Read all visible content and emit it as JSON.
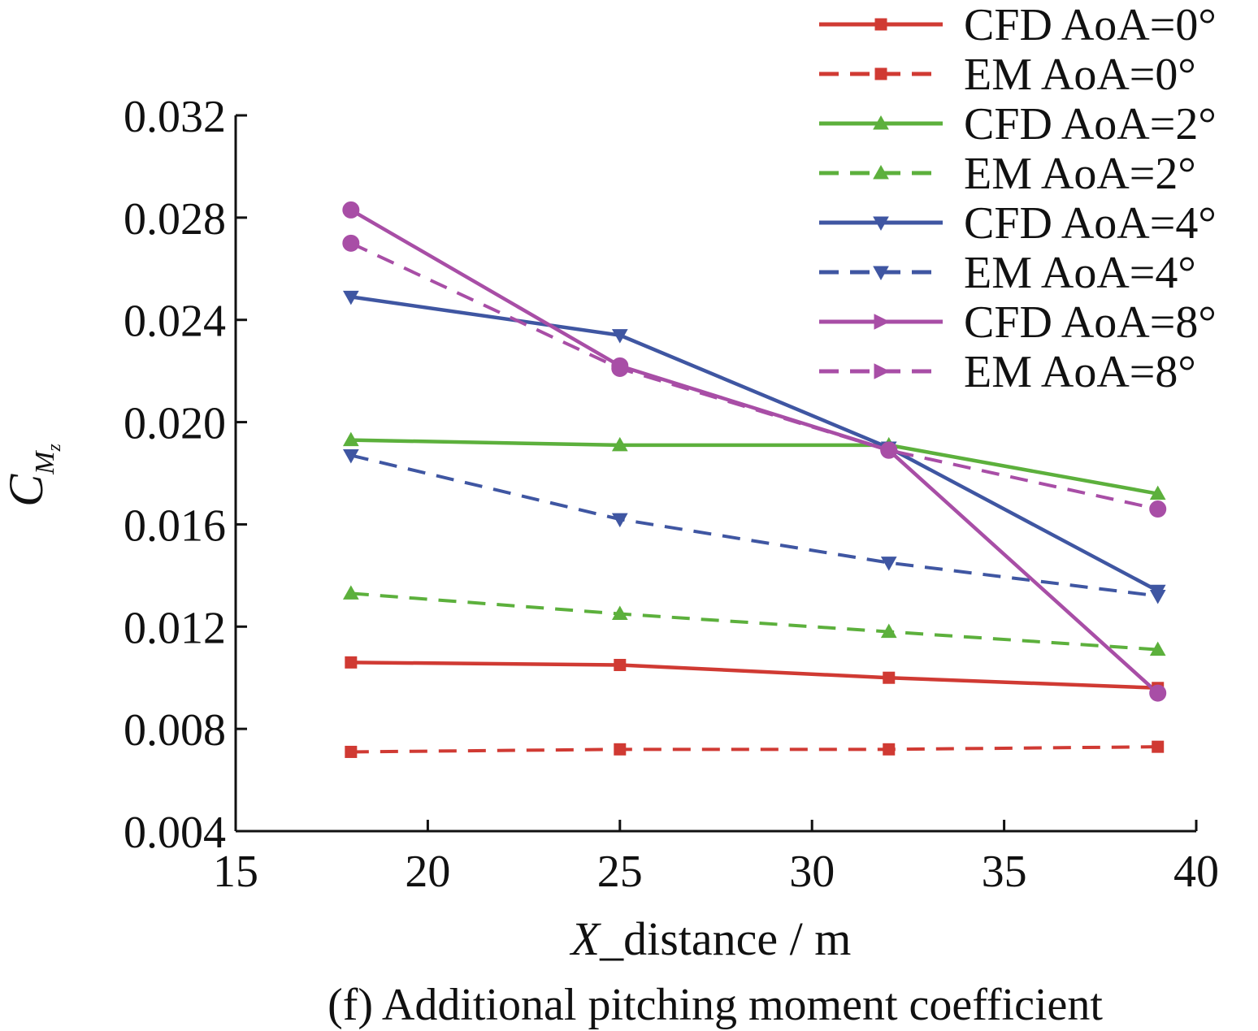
{
  "chart_data": {
    "type": "line",
    "title": "",
    "caption": "(f) Additional pitching moment coefficient",
    "xlabel_italic": "X",
    "xlabel_rest": "_distance / m",
    "ylabel_main": "C",
    "ylabel_sub1": "M",
    "ylabel_sub2": "z",
    "xlim": [
      15,
      40
    ],
    "ylim": [
      0.004,
      0.032
    ],
    "xticks": [
      "15",
      "20",
      "25",
      "30",
      "35",
      "40"
    ],
    "yticks": [
      "0.004",
      "0.008",
      "0.012",
      "0.016",
      "0.020",
      "0.024",
      "0.028",
      "0.032"
    ],
    "grid": false,
    "legend_position": "top-right",
    "x": [
      18,
      25,
      32,
      39
    ],
    "series": [
      {
        "name": "CFD AoA=0°",
        "color": "#d03a33",
        "dash": false,
        "marker": "square",
        "values": [
          0.0106,
          0.0105,
          0.01,
          0.0096
        ]
      },
      {
        "name": "EM AoA=0°",
        "color": "#d03a33",
        "dash": true,
        "marker": "square",
        "values": [
          0.0071,
          0.0072,
          0.0072,
          0.0073
        ]
      },
      {
        "name": "CFD AoA=2°",
        "color": "#5cb03c",
        "dash": false,
        "marker": "triangle-up",
        "values": [
          0.0193,
          0.0191,
          0.0191,
          0.0172
        ]
      },
      {
        "name": "EM AoA=2°",
        "color": "#5cb03c",
        "dash": true,
        "marker": "triangle-up",
        "values": [
          0.0133,
          0.0125,
          0.0118,
          0.0111
        ]
      },
      {
        "name": "CFD AoA=4°",
        "color": "#3f56a2",
        "dash": false,
        "marker": "triangle-down",
        "values": [
          0.0249,
          0.0234,
          0.019,
          0.0134
        ]
      },
      {
        "name": "EM AoA=4°",
        "color": "#3f56a2",
        "dash": true,
        "marker": "triangle-down",
        "values": [
          0.0187,
          0.0162,
          0.0145,
          0.0132
        ]
      },
      {
        "name": "CFD AoA=8°",
        "color": "#a84ea6",
        "dash": false,
        "marker": "circle",
        "legend_marker": "triangle-right",
        "values": [
          0.0283,
          0.0222,
          0.0189,
          0.0094
        ]
      },
      {
        "name": "EM AoA=8°",
        "color": "#a84ea6",
        "dash": true,
        "marker": "circle",
        "legend_marker": "triangle-right",
        "values": [
          0.027,
          0.0221,
          0.0189,
          0.0166
        ]
      }
    ]
  }
}
